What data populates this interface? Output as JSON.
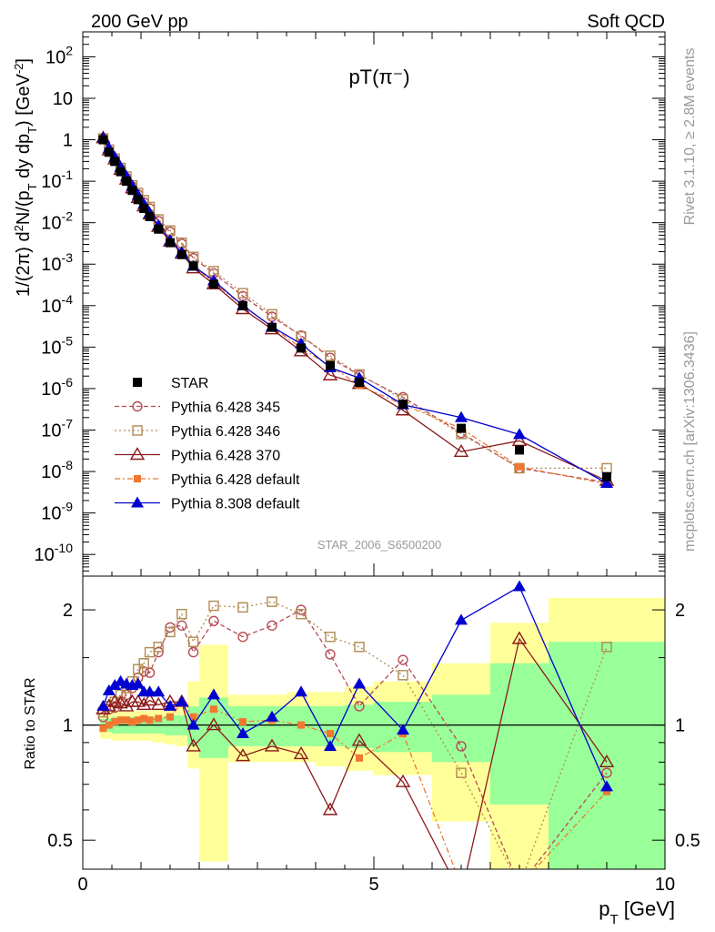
{
  "header": {
    "left": "200 GeV pp",
    "right": "Soft QCD",
    "plot_title": "pT(π⁻)",
    "analysis": "STAR_2006_S6500200",
    "side_rivet": "Rivet 3.1.10, ≥ 2.8M events",
    "side_mcplots": "mcplots.cern.ch [arXiv:1306.3436]"
  },
  "chart_data": {
    "type": "scatter",
    "x_axis": {
      "label_main": "p",
      "label_sub": "T",
      "label_unit": " [GeV]",
      "range": [
        0,
        10
      ],
      "ticks": [
        "0",
        "5",
        "10"
      ]
    },
    "top_panel": {
      "y_axis": {
        "label_html": "1/(2π) d²N/(p_T dy dp_T) [GeV⁻²]",
        "log": true,
        "range": [
          3e-11,
          400
        ],
        "ticks": [
          {
            "base": "10",
            "exp": "-10",
            "v": 1e-10
          },
          {
            "base": "10",
            "exp": "-9",
            "v": 1e-09
          },
          {
            "base": "10",
            "exp": "-8",
            "v": 1e-08
          },
          {
            "base": "10",
            "exp": "-7",
            "v": 1e-07
          },
          {
            "base": "10",
            "exp": "-6",
            "v": 1e-06
          },
          {
            "base": "10",
            "exp": "-5",
            "v": 1e-05
          },
          {
            "base": "10",
            "exp": "-4",
            "v": 0.0001
          },
          {
            "base": "10",
            "exp": "-3",
            "v": 0.001
          },
          {
            "base": "10",
            "exp": "-2",
            "v": 0.01
          },
          {
            "base": "10",
            "exp": "-1",
            "v": 0.1
          },
          {
            "base": "1",
            "exp": "",
            "v": 1
          },
          {
            "base": "10",
            "exp": "",
            "v": 10
          },
          {
            "base": "10",
            "exp": "2",
            "v": 100
          }
        ]
      },
      "x": [
        0.35,
        0.45,
        0.55,
        0.65,
        0.75,
        0.85,
        0.95,
        1.05,
        1.15,
        1.3,
        1.5,
        1.7,
        1.9,
        2.25,
        2.75,
        3.25,
        3.75,
        4.25,
        4.75,
        5.5,
        6.5,
        7.5,
        9.0
      ],
      "series": [
        {
          "name": "STAR",
          "color": "#000000",
          "marker": "square-filled",
          "dash": "",
          "values": [
            1.0,
            0.5,
            0.3,
            0.17,
            0.1,
            0.06,
            0.036,
            0.022,
            0.014,
            0.007,
            0.0033,
            0.0017,
            0.0009,
            0.00033,
            0.0001,
            3e-05,
            9.5e-06,
            3.6e-06,
            1.4e-06,
            4.2e-07,
            1.1e-07,
            3.3e-08,
            7.5e-09
          ]
        },
        {
          "name": "Pythia 6.428 345",
          "color": "#b84a55",
          "marker": "circle-open",
          "dash": "5,3",
          "values": [
            1.05,
            0.55,
            0.33,
            0.2,
            0.12,
            0.075,
            0.048,
            0.031,
            0.022,
            0.011,
            0.006,
            0.0031,
            0.0014,
            0.0006,
            0.00017,
            5.4e-05,
            1.9e-05,
            5.5e-06,
            2.1e-06,
            6.2e-07,
            8.5e-08,
            1.2e-08,
            5.5e-09
          ]
        },
        {
          "name": "Pythia 6.428 346",
          "color": "#b08a50",
          "marker": "square-open",
          "dash": "2,3",
          "values": [
            1.08,
            0.58,
            0.35,
            0.21,
            0.13,
            0.08,
            0.052,
            0.035,
            0.024,
            0.012,
            0.0065,
            0.0033,
            0.0015,
            0.00068,
            0.0002,
            6.2e-05,
            1.8e-05,
            6.2e-06,
            2.2e-06,
            5.5e-07,
            8e-08,
            1.2e-08,
            1.2e-08
          ]
        },
        {
          "name": "Pythia 6.428 370",
          "color": "#8b1a1a",
          "marker": "triangle-open",
          "dash": "",
          "values": [
            1.1,
            0.56,
            0.34,
            0.19,
            0.11,
            0.068,
            0.04,
            0.025,
            0.016,
            0.008,
            0.0035,
            0.0018,
            0.0008,
            0.00033,
            8.3e-05,
            2.7e-05,
            8e-06,
            2.1e-06,
            1.3e-06,
            3e-07,
            3e-08,
            5.5e-08,
            6e-09
          ]
        },
        {
          "name": "Pythia 6.428 default",
          "color": "#f07830",
          "marker": "square-filled-small",
          "dash": "6,3,2,3",
          "values": [
            0.98,
            0.5,
            0.31,
            0.17,
            0.1,
            0.06,
            0.038,
            0.023,
            0.014,
            0.007,
            0.0034,
            0.0019,
            0.0009,
            0.00036,
            0.0001,
            3.1e-05,
            9.5e-06,
            3.5e-06,
            1.2e-06,
            4.1e-07,
            1.1e-07,
            1.3e-08,
            5e-09
          ]
        },
        {
          "name": "Pythia 8.308 default",
          "color": "#0000d0",
          "marker": "triangle-filled",
          "dash": "",
          "values": [
            1.12,
            0.62,
            0.38,
            0.22,
            0.13,
            0.077,
            0.046,
            0.028,
            0.017,
            0.0085,
            0.0037,
            0.0019,
            0.0009,
            0.0004,
            0.0001,
            3.1e-05,
            1.2e-05,
            3.2e-06,
            1.8e-06,
            4.1e-07,
            2e-07,
            7.8e-08,
            5.2e-09
          ]
        }
      ]
    },
    "ratio_panel": {
      "y_axis": {
        "label": "Ratio to STAR",
        "log": true,
        "range": [
          0.42,
          2.45
        ],
        "ticks": [
          {
            "label": "0.5",
            "v": 0.5
          },
          {
            "label": "1",
            "v": 1
          },
          {
            "label": "2",
            "v": 2
          }
        ]
      },
      "bands_green": [
        {
          "x0": 0.3,
          "x1": 0.4,
          "lo": 0.96,
          "hi": 1.04
        },
        {
          "x0": 0.4,
          "x1": 0.5,
          "lo": 0.96,
          "hi": 1.04
        },
        {
          "x0": 0.5,
          "x1": 0.6,
          "lo": 0.95,
          "hi": 1.05
        },
        {
          "x0": 0.6,
          "x1": 0.7,
          "lo": 0.95,
          "hi": 1.05
        },
        {
          "x0": 0.7,
          "x1": 0.8,
          "lo": 0.95,
          "hi": 1.05
        },
        {
          "x0": 0.8,
          "x1": 0.9,
          "lo": 0.95,
          "hi": 1.05
        },
        {
          "x0": 0.9,
          "x1": 1.0,
          "lo": 0.95,
          "hi": 1.05
        },
        {
          "x0": 1.0,
          "x1": 1.1,
          "lo": 0.95,
          "hi": 1.05
        },
        {
          "x0": 1.1,
          "x1": 1.2,
          "lo": 0.95,
          "hi": 1.05
        },
        {
          "x0": 1.2,
          "x1": 1.4,
          "lo": 0.95,
          "hi": 1.05
        },
        {
          "x0": 1.4,
          "x1": 1.6,
          "lo": 0.94,
          "hi": 1.06
        },
        {
          "x0": 1.6,
          "x1": 1.8,
          "lo": 0.94,
          "hi": 1.06
        },
        {
          "x0": 1.8,
          "x1": 2.0,
          "lo": 0.88,
          "hi": 1.12
        },
        {
          "x0": 2.0,
          "x1": 2.5,
          "lo": 0.82,
          "hi": 1.18
        },
        {
          "x0": 2.5,
          "x1": 3.0,
          "lo": 0.88,
          "hi": 1.12
        },
        {
          "x0": 3.0,
          "x1": 3.5,
          "lo": 0.88,
          "hi": 1.12
        },
        {
          "x0": 3.5,
          "x1": 4.0,
          "lo": 0.88,
          "hi": 1.12
        },
        {
          "x0": 4.0,
          "x1": 4.5,
          "lo": 0.88,
          "hi": 1.12
        },
        {
          "x0": 4.5,
          "x1": 5.0,
          "lo": 0.87,
          "hi": 1.13
        },
        {
          "x0": 5.0,
          "x1": 6.0,
          "lo": 0.85,
          "hi": 1.15
        },
        {
          "x0": 6.0,
          "x1": 7.0,
          "lo": 0.8,
          "hi": 1.2
        },
        {
          "x0": 7.0,
          "x1": 8.0,
          "lo": 0.62,
          "hi": 1.45
        },
        {
          "x0": 8.0,
          "x1": 10.0,
          "lo": 0.42,
          "hi": 1.65
        }
      ],
      "bands_yellow": [
        {
          "x0": 0.3,
          "x1": 0.4,
          "lo": 0.92,
          "hi": 1.08
        },
        {
          "x0": 0.4,
          "x1": 0.5,
          "lo": 0.92,
          "hi": 1.08
        },
        {
          "x0": 0.5,
          "x1": 0.6,
          "lo": 0.91,
          "hi": 1.09
        },
        {
          "x0": 0.6,
          "x1": 0.7,
          "lo": 0.91,
          "hi": 1.09
        },
        {
          "x0": 0.7,
          "x1": 0.8,
          "lo": 0.91,
          "hi": 1.09
        },
        {
          "x0": 0.8,
          "x1": 0.9,
          "lo": 0.91,
          "hi": 1.09
        },
        {
          "x0": 0.9,
          "x1": 1.0,
          "lo": 0.91,
          "hi": 1.09
        },
        {
          "x0": 1.0,
          "x1": 1.1,
          "lo": 0.91,
          "hi": 1.09
        },
        {
          "x0": 1.1,
          "x1": 1.2,
          "lo": 0.91,
          "hi": 1.09
        },
        {
          "x0": 1.2,
          "x1": 1.4,
          "lo": 0.9,
          "hi": 1.1
        },
        {
          "x0": 1.4,
          "x1": 1.6,
          "lo": 0.89,
          "hi": 1.11
        },
        {
          "x0": 1.6,
          "x1": 1.8,
          "lo": 0.88,
          "hi": 1.12
        },
        {
          "x0": 1.8,
          "x1": 2.0,
          "lo": 0.77,
          "hi": 1.3
        },
        {
          "x0": 2.0,
          "x1": 2.5,
          "lo": 0.44,
          "hi": 1.62
        },
        {
          "x0": 2.5,
          "x1": 3.0,
          "lo": 0.8,
          "hi": 1.2
        },
        {
          "x0": 3.0,
          "x1": 3.5,
          "lo": 0.8,
          "hi": 1.2
        },
        {
          "x0": 3.5,
          "x1": 4.0,
          "lo": 0.8,
          "hi": 1.22
        },
        {
          "x0": 4.0,
          "x1": 4.5,
          "lo": 0.78,
          "hi": 1.22
        },
        {
          "x0": 4.5,
          "x1": 5.0,
          "lo": 0.76,
          "hi": 1.26
        },
        {
          "x0": 5.0,
          "x1": 6.0,
          "lo": 0.74,
          "hi": 1.3
        },
        {
          "x0": 6.0,
          "x1": 7.0,
          "lo": 0.56,
          "hi": 1.45
        },
        {
          "x0": 7.0,
          "x1": 8.0,
          "lo": 0.42,
          "hi": 1.85
        },
        {
          "x0": 8.0,
          "x1": 10.0,
          "lo": 0.42,
          "hi": 2.15
        }
      ],
      "ratios": {
        "Pythia 6.428 345": [
          1.05,
          1.1,
          1.11,
          1.15,
          1.2,
          1.25,
          1.33,
          1.38,
          1.37,
          1.55,
          1.8,
          1.82,
          1.55,
          1.87,
          1.7,
          1.82,
          2.0,
          1.53,
          1.12,
          1.48,
          0.88,
          0.38,
          0.75
        ],
        "Pythia 6.428 346": [
          1.08,
          1.12,
          1.15,
          1.2,
          1.25,
          1.3,
          1.4,
          1.45,
          1.55,
          1.6,
          1.75,
          1.95,
          1.65,
          2.05,
          2.03,
          2.1,
          1.95,
          1.7,
          1.6,
          1.35,
          0.75,
          0.38,
          1.6
        ],
        "Pythia 6.428 370": [
          1.1,
          1.12,
          1.15,
          1.14,
          1.12,
          1.15,
          1.15,
          1.13,
          1.16,
          1.13,
          1.15,
          1.15,
          0.88,
          1.0,
          0.83,
          0.88,
          0.84,
          0.6,
          0.91,
          0.71,
          0.36,
          1.68,
          0.8
        ],
        "Pythia 6.428 default": [
          0.98,
          1.0,
          1.02,
          1.03,
          1.03,
          1.02,
          1.03,
          1.04,
          1.03,
          1.04,
          1.05,
          1.14,
          1.05,
          1.1,
          1.02,
          1.03,
          1.0,
          0.95,
          0.82,
          0.95,
          0.38,
          0.38,
          0.67
        ],
        "Pythia 8.308 default": [
          1.12,
          1.23,
          1.27,
          1.3,
          1.28,
          1.27,
          1.28,
          1.22,
          1.22,
          1.22,
          1.12,
          1.15,
          1.0,
          1.2,
          0.95,
          1.05,
          1.22,
          0.88,
          1.28,
          0.97,
          1.88,
          2.3,
          0.69
        ]
      }
    }
  }
}
